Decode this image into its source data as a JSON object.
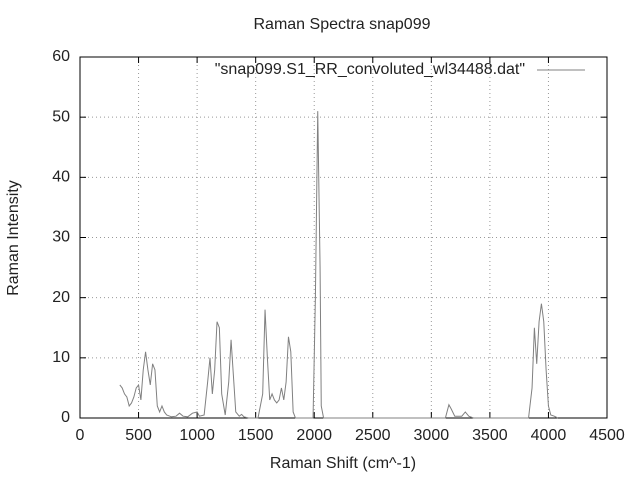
{
  "chart_data": {
    "type": "line",
    "title": "Raman Spectra snap099",
    "x_label": "Raman Shift (cm^-1)",
    "y_label": "Raman Intensity",
    "xlim": [
      0,
      4500
    ],
    "ylim": [
      0,
      60
    ],
    "xticks": [
      0,
      500,
      1000,
      1500,
      2000,
      2500,
      3000,
      3500,
      4000,
      4500
    ],
    "yticks": [
      0,
      10,
      20,
      30,
      40,
      50,
      60
    ],
    "grid": true,
    "legend": "top-right",
    "x": [
      340,
      360,
      380,
      400,
      420,
      440,
      460,
      480,
      500,
      520,
      540,
      560,
      580,
      600,
      620,
      640,
      660,
      680,
      700,
      720,
      740,
      780,
      820,
      850,
      880,
      920,
      960,
      1000,
      1020,
      1060,
      1090,
      1110,
      1130,
      1150,
      1170,
      1190,
      1210,
      1240,
      1270,
      1290,
      1310,
      1330,
      1360,
      1380,
      1400,
      1440,
      1520,
      1560,
      1580,
      1600,
      1620,
      1640,
      1660,
      1680,
      1700,
      1720,
      1740,
      1760,
      1780,
      1800,
      1820,
      1840,
      1990,
      2010,
      2030,
      2050,
      2060,
      2080,
      3120,
      3150,
      3170,
      3200,
      3260,
      3290,
      3320,
      3360,
      3830,
      3860,
      3880,
      3900,
      3920,
      3940,
      3960,
      3980,
      4000,
      4020,
      4050,
      4080
    ],
    "series": [
      {
        "name": "\"snap099.S1_RR_convoluted_wl34488.dat\"",
        "color": "#808080",
        "values": [
          5.5,
          5,
          4,
          3.5,
          2,
          2.5,
          3.5,
          5,
          5.5,
          3,
          8,
          11,
          8,
          5.5,
          9,
          8,
          2,
          1,
          2,
          1,
          0.5,
          0.2,
          0.3,
          0.8,
          0.3,
          0.2,
          0.8,
          1,
          0.3,
          0.5,
          6,
          10,
          4,
          8,
          16,
          15,
          4,
          0.5,
          6,
          13,
          7,
          1,
          0.3,
          0.6,
          0.2,
          0,
          0,
          4,
          18,
          10,
          3,
          4,
          3,
          2.5,
          3,
          5,
          3,
          6,
          13.5,
          11,
          1,
          0,
          0,
          20,
          51,
          25,
          2,
          0,
          0,
          2.2,
          1.5,
          0.3,
          0.3,
          1,
          0.3,
          0,
          0,
          5,
          15,
          9,
          16,
          19,
          16,
          8,
          2,
          0.5,
          0.3,
          0
        ]
      }
    ]
  }
}
